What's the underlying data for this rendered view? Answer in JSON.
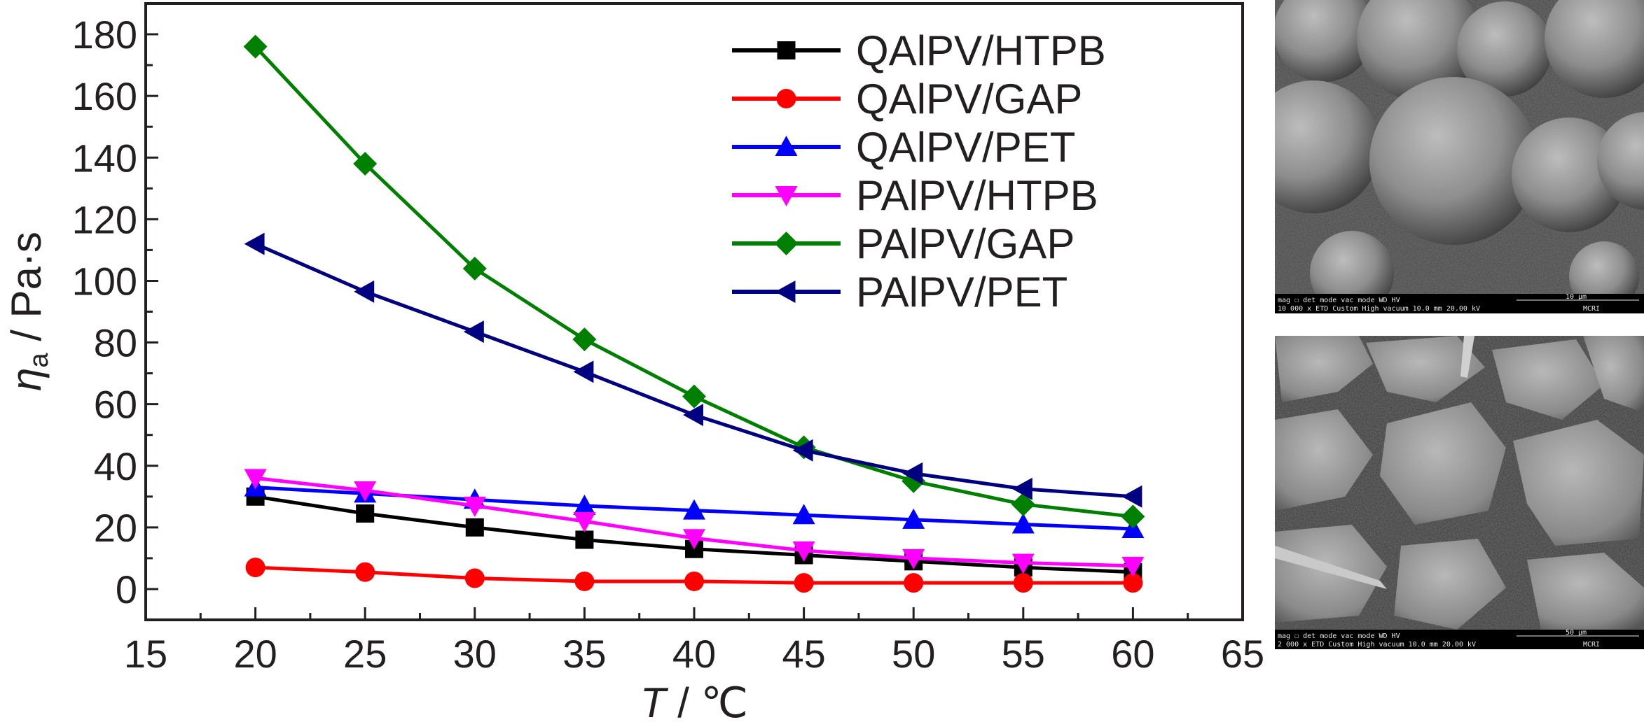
{
  "chart_data": {
    "type": "line",
    "xlabel": {
      "var": "T",
      "unit": "℃"
    },
    "ylabel": {
      "var": "η",
      "sub": "a",
      "unit": "Pa·s"
    },
    "xlim": [
      15,
      65
    ],
    "ylim": [
      -10,
      190
    ],
    "xticks": [
      15,
      20,
      25,
      30,
      35,
      40,
      45,
      50,
      55,
      60,
      65
    ],
    "yticks": [
      0,
      20,
      40,
      60,
      80,
      100,
      120,
      140,
      160,
      180
    ],
    "grid": false,
    "legend_position": "top-right",
    "x": [
      20,
      25,
      30,
      35,
      40,
      45,
      50,
      55,
      60
    ],
    "series": [
      {
        "name": "QAlPV/HTPB",
        "color": "#000000",
        "marker": "square",
        "values": [
          30,
          24.5,
          20,
          16,
          13,
          11,
          9,
          7,
          5.5
        ]
      },
      {
        "name": "QAlPV/GAP",
        "color": "#ff0000",
        "marker": "circle",
        "values": [
          7,
          5.5,
          3.5,
          2.5,
          2.5,
          2,
          2,
          2,
          2
        ]
      },
      {
        "name": "QAlPV/PET",
        "color": "#0000ff",
        "marker": "triangle-up",
        "values": [
          33,
          31,
          29,
          27,
          25.5,
          24,
          22.5,
          21,
          19.5
        ]
      },
      {
        "name": "PAlPV/HTPB",
        "color": "#ff00ff",
        "marker": "triangle-down",
        "values": [
          36,
          32,
          27,
          22,
          16.5,
          12.5,
          10,
          8.5,
          7.5
        ]
      },
      {
        "name": "PAlPV/GAP",
        "color": "#008000",
        "marker": "diamond",
        "values": [
          176,
          138,
          104,
          81,
          62.5,
          46,
          35,
          27.5,
          23.5
        ]
      },
      {
        "name": "PAlPV/PET",
        "color": "#000080",
        "marker": "triangle-left",
        "values": [
          112,
          96.5,
          83.5,
          70.5,
          56.5,
          45,
          37.5,
          32.5,
          30
        ]
      }
    ]
  },
  "sem_images": [
    {
      "info_top": "mag ☐   det    mode      vac mode        WD        HV",
      "info_bottom": "10 000 x  ETD  Custom  High vacuum  10.0 mm  20.00 kV",
      "scale_label": "10 μm",
      "org": "MCRI"
    },
    {
      "info_top": "mag ☐   det    mode      vac mode        WD        HV",
      "info_bottom": "2 000 x  ETD  Custom  High vacuum  10.0 mm  20.00 kV",
      "scale_label": "50 μm",
      "org": "MCRI"
    }
  ]
}
